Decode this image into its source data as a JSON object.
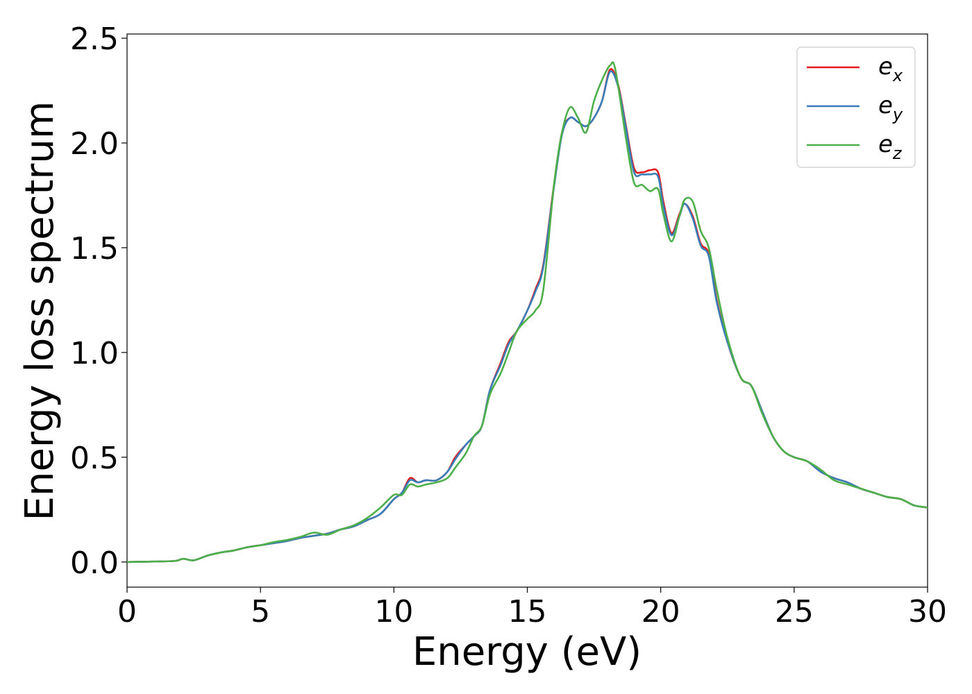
{
  "chart_data": {
    "type": "line",
    "xlabel": "Energy (eV)",
    "ylabel": "Energy loss spectrum",
    "xlim": [
      0,
      30
    ],
    "ylim": [
      -0.12,
      2.52
    ],
    "xticks": [
      0,
      5,
      10,
      15,
      20,
      25,
      30
    ],
    "xtick_labels": [
      "0",
      "5",
      "10",
      "15",
      "20",
      "25",
      "30"
    ],
    "yticks": [
      0.0,
      0.5,
      1.0,
      1.5,
      2.0,
      2.5
    ],
    "ytick_labels": [
      "0.0",
      "0.5",
      "1.0",
      "1.5",
      "2.0",
      "2.5"
    ],
    "grid": false,
    "legend_position": "top-right",
    "series": [
      {
        "name": "e",
        "subscript": "x",
        "color": "#e41a1c",
        "x": [
          0,
          1,
          1.8,
          2.1,
          2.5,
          3,
          3.5,
          4,
          4.5,
          5,
          5.5,
          6,
          6.5,
          7,
          7.5,
          8,
          8.5,
          9,
          9.5,
          10,
          10.3,
          10.6,
          10.9,
          11.2,
          11.6,
          12,
          12.3,
          12.7,
          13,
          13.3,
          13.6,
          14,
          14.3,
          14.6,
          15,
          15.3,
          15.6,
          16,
          16.3,
          16.6,
          16.9,
          17.2,
          17.5,
          17.8,
          18.1,
          18.4,
          18.7,
          19,
          19.3,
          19.6,
          19.9,
          20.1,
          20.4,
          20.7,
          20.9,
          21.2,
          21.5,
          21.8,
          22.1,
          22.5,
          23,
          23.4,
          23.8,
          24.2,
          24.6,
          25,
          25.5,
          26,
          26.5,
          27,
          27.5,
          28,
          28.5,
          29,
          29.5,
          30
        ],
        "y": [
          0,
          0.002,
          0.005,
          0.015,
          0.008,
          0.03,
          0.045,
          0.055,
          0.07,
          0.08,
          0.09,
          0.1,
          0.115,
          0.125,
          0.135,
          0.155,
          0.17,
          0.2,
          0.23,
          0.3,
          0.33,
          0.4,
          0.38,
          0.39,
          0.39,
          0.43,
          0.5,
          0.56,
          0.6,
          0.65,
          0.82,
          0.95,
          1.05,
          1.1,
          1.2,
          1.3,
          1.42,
          1.8,
          2.05,
          2.12,
          2.1,
          2.08,
          2.12,
          2.2,
          2.35,
          2.28,
          2.08,
          1.88,
          1.86,
          1.87,
          1.86,
          1.72,
          1.57,
          1.66,
          1.71,
          1.65,
          1.52,
          1.47,
          1.25,
          1.05,
          0.88,
          0.84,
          0.72,
          0.6,
          0.53,
          0.5,
          0.48,
          0.43,
          0.4,
          0.38,
          0.35,
          0.33,
          0.31,
          0.3,
          0.27,
          0.26
        ]
      },
      {
        "name": "e",
        "subscript": "y",
        "color": "#377eb8",
        "x": [
          0,
          1,
          1.8,
          2.1,
          2.5,
          3,
          3.5,
          4,
          4.5,
          5,
          5.5,
          6,
          6.5,
          7,
          7.5,
          8,
          8.5,
          9,
          9.5,
          10,
          10.3,
          10.6,
          10.9,
          11.2,
          11.6,
          12,
          12.3,
          12.7,
          13,
          13.3,
          13.6,
          14,
          14.3,
          14.6,
          15,
          15.3,
          15.6,
          16,
          16.3,
          16.6,
          16.9,
          17.2,
          17.5,
          17.8,
          18.1,
          18.4,
          18.7,
          19,
          19.3,
          19.6,
          19.9,
          20.1,
          20.4,
          20.7,
          20.9,
          21.2,
          21.5,
          21.8,
          22.1,
          22.5,
          23,
          23.4,
          23.8,
          24.2,
          24.6,
          25,
          25.5,
          26,
          26.5,
          27,
          27.5,
          28,
          28.5,
          29,
          29.5,
          30
        ],
        "y": [
          0,
          0.002,
          0.005,
          0.015,
          0.008,
          0.03,
          0.045,
          0.055,
          0.07,
          0.08,
          0.09,
          0.1,
          0.115,
          0.125,
          0.135,
          0.155,
          0.17,
          0.2,
          0.23,
          0.3,
          0.33,
          0.39,
          0.38,
          0.39,
          0.39,
          0.43,
          0.49,
          0.56,
          0.6,
          0.65,
          0.82,
          0.94,
          1.04,
          1.1,
          1.2,
          1.29,
          1.41,
          1.79,
          2.04,
          2.12,
          2.1,
          2.08,
          2.12,
          2.2,
          2.34,
          2.27,
          2.07,
          1.86,
          1.85,
          1.85,
          1.84,
          1.7,
          1.56,
          1.65,
          1.71,
          1.64,
          1.51,
          1.46,
          1.24,
          1.05,
          0.88,
          0.84,
          0.72,
          0.6,
          0.53,
          0.5,
          0.48,
          0.43,
          0.4,
          0.38,
          0.35,
          0.33,
          0.31,
          0.3,
          0.27,
          0.26
        ]
      },
      {
        "name": "e",
        "subscript": "z",
        "color": "#4daf4a",
        "x": [
          0,
          1,
          1.8,
          2.1,
          2.5,
          3,
          3.5,
          4,
          4.5,
          5,
          5.5,
          6,
          6.5,
          7,
          7.5,
          8,
          8.5,
          9,
          9.5,
          10,
          10.3,
          10.6,
          10.9,
          11.2,
          11.6,
          12,
          12.3,
          12.7,
          13,
          13.3,
          13.6,
          14,
          14.3,
          14.6,
          15,
          15.3,
          15.6,
          16,
          16.3,
          16.6,
          16.9,
          17.2,
          17.5,
          17.8,
          18.1,
          18.3,
          18.7,
          19,
          19.3,
          19.6,
          19.9,
          20.1,
          20.4,
          20.7,
          20.9,
          21.2,
          21.5,
          21.8,
          22.1,
          22.5,
          23,
          23.4,
          23.8,
          24.2,
          24.6,
          25,
          25.5,
          26,
          26.5,
          27,
          27.5,
          28,
          28.5,
          29,
          29.5,
          30
        ],
        "y": [
          0,
          0.002,
          0.005,
          0.015,
          0.008,
          0.03,
          0.045,
          0.055,
          0.07,
          0.08,
          0.095,
          0.105,
          0.12,
          0.14,
          0.13,
          0.155,
          0.175,
          0.21,
          0.26,
          0.32,
          0.32,
          0.37,
          0.36,
          0.37,
          0.38,
          0.4,
          0.45,
          0.52,
          0.6,
          0.65,
          0.8,
          0.9,
          1.0,
          1.1,
          1.16,
          1.2,
          1.3,
          1.8,
          2.05,
          2.17,
          2.12,
          2.05,
          2.2,
          2.3,
          2.37,
          2.35,
          2.02,
          1.81,
          1.8,
          1.77,
          1.78,
          1.66,
          1.53,
          1.65,
          1.73,
          1.72,
          1.58,
          1.5,
          1.3,
          1.07,
          0.88,
          0.84,
          0.71,
          0.6,
          0.53,
          0.5,
          0.48,
          0.44,
          0.39,
          0.37,
          0.35,
          0.33,
          0.31,
          0.3,
          0.27,
          0.26
        ]
      }
    ]
  }
}
